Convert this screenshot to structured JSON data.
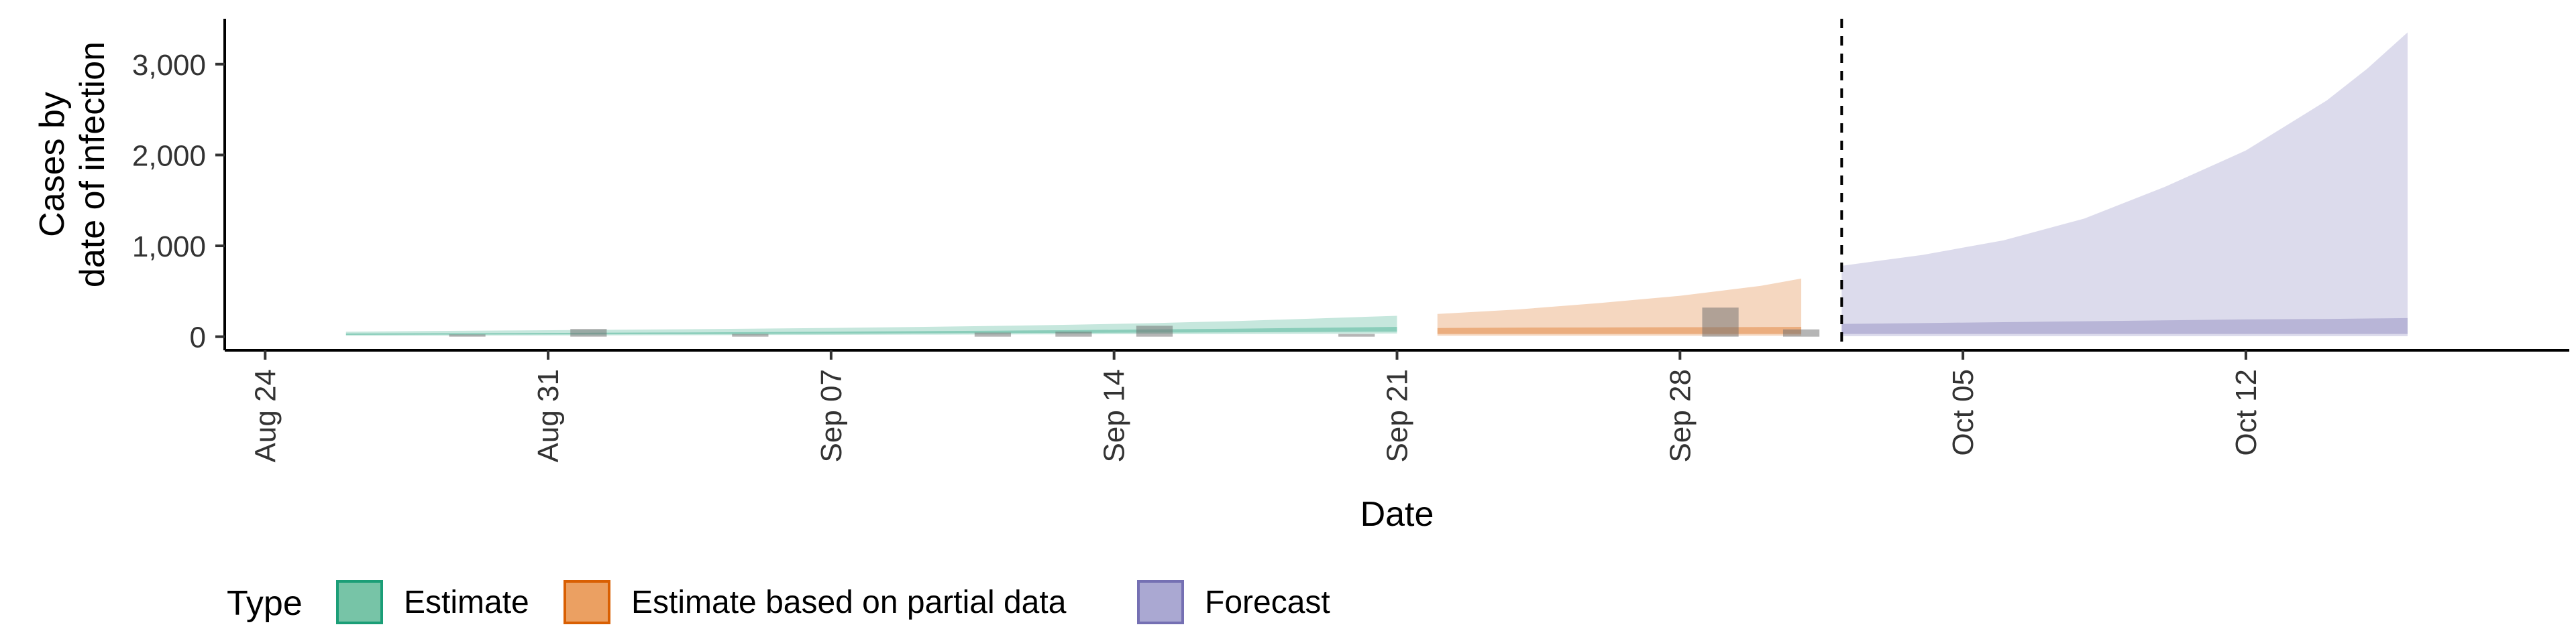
{
  "chart_data": {
    "type": "area",
    "xlabel": "Date",
    "ylabel": [
      "Cases by",
      "date of infection"
    ],
    "x_ticks": [
      "Aug 24",
      "Aug 31",
      "Sep 07",
      "Sep 14",
      "Sep 21",
      "Sep 28",
      "Oct 05",
      "Oct 12"
    ],
    "y_ticks": [
      0,
      1000,
      2000,
      3000
    ],
    "y_tick_labels": [
      "0",
      "1,000",
      "2,000",
      "3,000"
    ],
    "xlim": [
      "2020-08-23",
      "2020-10-20"
    ],
    "ylim": [
      -150,
      3500
    ],
    "forecast_start_line": "2020-10-02",
    "grid": false,
    "legend": {
      "title": "Type",
      "position": "bottom",
      "entries": [
        {
          "label": "Estimate",
          "fill": "#77c4a7",
          "stroke": "#1b9e77"
        },
        {
          "label": "Estimate based on partial data",
          "fill": "#eba062",
          "stroke": "#d95f02"
        },
        {
          "label": "Forecast",
          "fill": "#aaa8d2",
          "stroke": "#7570b3"
        }
      ]
    },
    "series": [
      {
        "name": "Estimate",
        "color": "#1b9e77",
        "x": [
          "2020-08-26",
          "2020-08-28",
          "2020-08-30",
          "2020-09-01",
          "2020-09-03",
          "2020-09-05",
          "2020-09-07",
          "2020-09-09",
          "2020-09-11",
          "2020-09-13",
          "2020-09-15",
          "2020-09-17",
          "2020-09-19",
          "2020-09-21"
        ],
        "upper": [
          55,
          62,
          68,
          74,
          80,
          88,
          96,
          106,
          118,
          132,
          150,
          172,
          200,
          230
        ],
        "lower": [
          10,
          12,
          13,
          14,
          16,
          18,
          20,
          22,
          24,
          26,
          28,
          30,
          32,
          35
        ],
        "inner_upper": [
          35,
          38,
          40,
          43,
          46,
          50,
          55,
          60,
          66,
          72,
          80,
          88,
          98,
          108
        ],
        "inner_lower": [
          20,
          22,
          24,
          26,
          28,
          30,
          33,
          36,
          39,
          42,
          45,
          48,
          52,
          56
        ]
      },
      {
        "name": "Estimate based on partial data",
        "color": "#d95f02",
        "x": [
          "2020-09-22",
          "2020-09-24",
          "2020-09-26",
          "2020-09-28",
          "2020-09-30",
          "2020-10-01"
        ],
        "upper": [
          250,
          300,
          370,
          450,
          560,
          640
        ],
        "lower": [
          10,
          10,
          10,
          10,
          10,
          10
        ],
        "inner_upper": [
          95,
          100,
          102,
          104,
          106,
          108
        ],
        "inner_lower": [
          30,
          30,
          30,
          30,
          30,
          30
        ]
      },
      {
        "name": "Forecast",
        "color": "#7570b3",
        "x": [
          "2020-10-02",
          "2020-10-04",
          "2020-10-06",
          "2020-10-08",
          "2020-10-10",
          "2020-10-12",
          "2020-10-14",
          "2020-10-15",
          "2020-10-16"
        ],
        "upper": [
          780,
          900,
          1060,
          1300,
          1650,
          2050,
          2600,
          2950,
          3350
        ],
        "lower": [
          5,
          5,
          5,
          5,
          5,
          5,
          5,
          5,
          5
        ],
        "inner_upper": [
          140,
          150,
          160,
          170,
          180,
          190,
          195,
          200,
          205
        ],
        "inner_lower": [
          30,
          30,
          30,
          30,
          30,
          30,
          30,
          30,
          30
        ]
      }
    ],
    "reported_cases": {
      "color": "#6b6b6b",
      "x": [
        "2020-08-29",
        "2020-09-01",
        "2020-09-05",
        "2020-09-11",
        "2020-09-13",
        "2020-09-15",
        "2020-09-20",
        "2020-09-29",
        "2020-10-01"
      ],
      "values": [
        25,
        85,
        30,
        45,
        55,
        120,
        30,
        320,
        80
      ]
    }
  }
}
